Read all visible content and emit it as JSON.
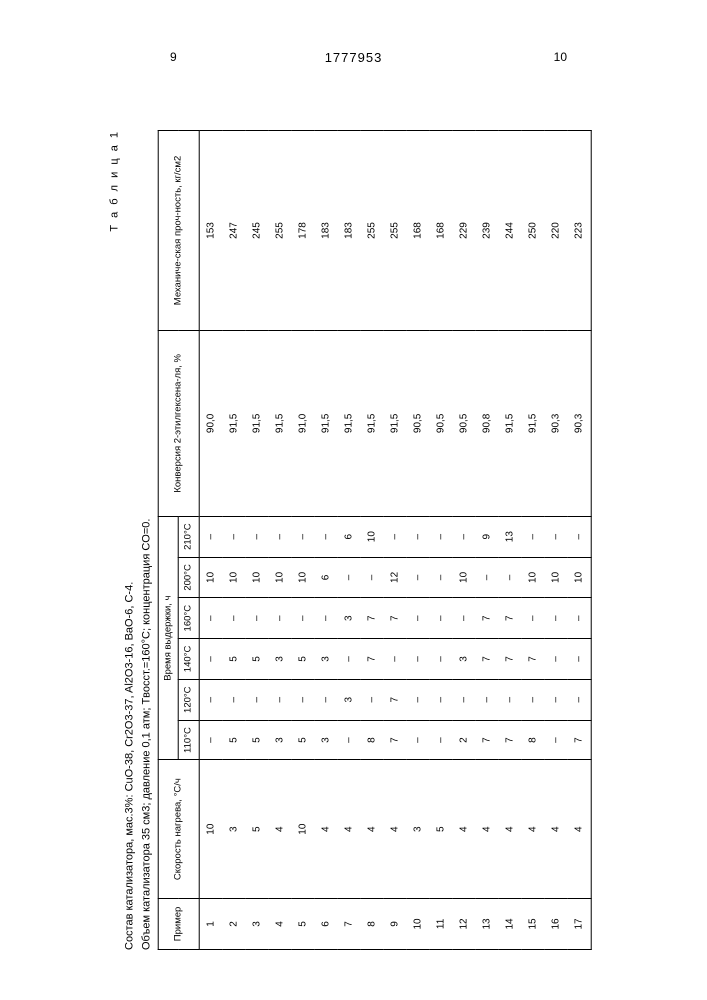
{
  "page": {
    "left_number": "9",
    "right_number": "10",
    "doc_number": "1777953"
  },
  "caption": {
    "line1": "Состав катализатора, мас.3%: CuO-38, Cr2O3-37, Al2O3-16, BaO-6, C-4.",
    "line2": "Объем катализатора 35 см3; давление 0,1 атм; Tвосст.=160°С; концентрация CO=0.",
    "table_label": "Т а б л и ц а 1"
  },
  "headers": {
    "example": "Пример",
    "heating_rate": "Скорость нагрева, °С/ч",
    "hold_time": "Время выдержки, ч",
    "temps": [
      "110°С",
      "120°С",
      "140°С",
      "160°С",
      "200°С",
      "210°С"
    ],
    "conversion": "Конверсия 2-этилгексена-ля, %",
    "strength": "Механиче-ская проч-ность, кг/см2"
  },
  "rows": [
    {
      "n": "1",
      "rate": "10",
      "t110": "–",
      "t120": "–",
      "t140": "–",
      "t160": "–",
      "t200": "10",
      "t210": "–",
      "conv": "90,0",
      "str": "153"
    },
    {
      "n": "2",
      "rate": "3",
      "t110": "5",
      "t120": "–",
      "t140": "5",
      "t160": "–",
      "t200": "10",
      "t210": "–",
      "conv": "91,5",
      "str": "247"
    },
    {
      "n": "3",
      "rate": "5",
      "t110": "5",
      "t120": "–",
      "t140": "5",
      "t160": "–",
      "t200": "10",
      "t210": "–",
      "conv": "91,5",
      "str": "245"
    },
    {
      "n": "4",
      "rate": "4",
      "t110": "3",
      "t120": "–",
      "t140": "3",
      "t160": "–",
      "t200": "10",
      "t210": "–",
      "conv": "91,5",
      "str": "255"
    },
    {
      "n": "5",
      "rate": "10",
      "t110": "5",
      "t120": "–",
      "t140": "5",
      "t160": "–",
      "t200": "10",
      "t210": "–",
      "conv": "91,0",
      "str": "178"
    },
    {
      "n": "6",
      "rate": "4",
      "t110": "3",
      "t120": "–",
      "t140": "3",
      "t160": "–",
      "t200": "6",
      "t210": "–",
      "conv": "91,5",
      "str": "183"
    },
    {
      "n": "7",
      "rate": "4",
      "t110": "–",
      "t120": "3",
      "t140": "–",
      "t160": "3",
      "t200": "–",
      "t210": "6",
      "conv": "91,5",
      "str": "183"
    },
    {
      "n": "8",
      "rate": "4",
      "t110": "8",
      "t120": "–",
      "t140": "7",
      "t160": "7",
      "t200": "–",
      "t210": "10",
      "conv": "91,5",
      "str": "255"
    },
    {
      "n": "9",
      "rate": "4",
      "t110": "7",
      "t120": "7",
      "t140": "–",
      "t160": "7",
      "t200": "12",
      "t210": "–",
      "conv": "91,5",
      "str": "255"
    },
    {
      "n": "10",
      "rate": "3",
      "t110": "–",
      "t120": "–",
      "t140": "–",
      "t160": "–",
      "t200": "–",
      "t210": "–",
      "conv": "90,5",
      "str": "168"
    },
    {
      "n": "11",
      "rate": "5",
      "t110": "–",
      "t120": "–",
      "t140": "–",
      "t160": "–",
      "t200": "–",
      "t210": "–",
      "conv": "90,5",
      "str": "168"
    },
    {
      "n": "12",
      "rate": "4",
      "t110": "2",
      "t120": "–",
      "t140": "3",
      "t160": "–",
      "t200": "10",
      "t210": "–",
      "conv": "90,5",
      "str": "229"
    },
    {
      "n": "13",
      "rate": "4",
      "t110": "7",
      "t120": "–",
      "t140": "7",
      "t160": "7",
      "t200": "–",
      "t210": "9",
      "conv": "90,8",
      "str": "239"
    },
    {
      "n": "14",
      "rate": "4",
      "t110": "7",
      "t120": "–",
      "t140": "7",
      "t160": "7",
      "t200": "–",
      "t210": "13",
      "conv": "91,5",
      "str": "244"
    },
    {
      "n": "15",
      "rate": "4",
      "t110": "8",
      "t120": "–",
      "t140": "7",
      "t160": "–",
      "t200": "10",
      "t210": "–",
      "conv": "91,5",
      "str": "250"
    },
    {
      "n": "16",
      "rate": "4",
      "t110": "–",
      "t120": "–",
      "t140": "–",
      "t160": "–",
      "t200": "10",
      "t210": "–",
      "conv": "90,3",
      "str": "220"
    },
    {
      "n": "17",
      "rate": "4",
      "t110": "7",
      "t120": "–",
      "t140": "–",
      "t160": "–",
      "t200": "10",
      "t210": "–",
      "conv": "90,3",
      "str": "223"
    }
  ]
}
